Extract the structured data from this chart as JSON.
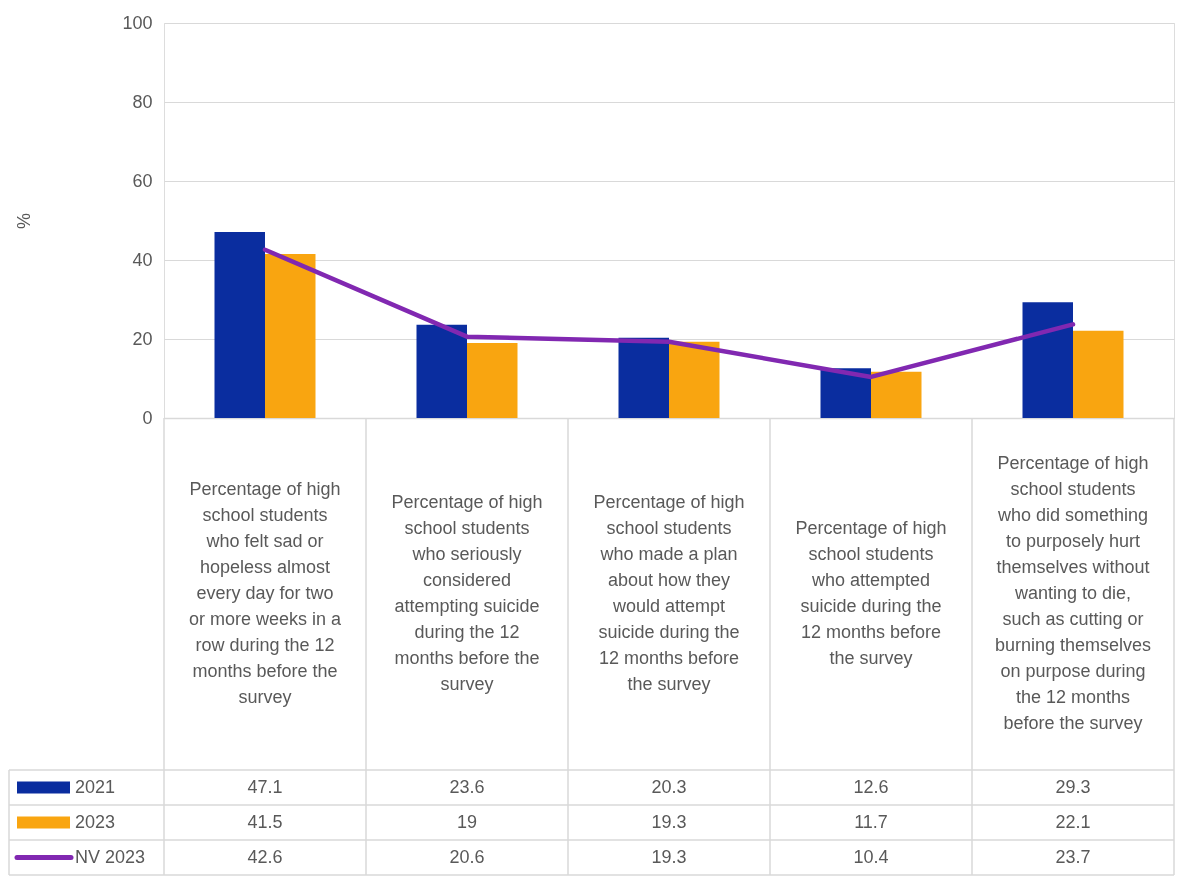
{
  "chart_data": {
    "type": "bar",
    "ylabel": "%",
    "categories": [
      "Percentage of high school students who felt sad or hopeless almost every day for two or more weeks in a row during the 12 months before the survey",
      "Percentage of high school students who seriously considered attempting suicide during the 12 months before the survey",
      "Percentage of high school students who made a plan about how they would attempt suicide during the 12 months before the survey",
      "Percentage of high school students who attempted suicide during the 12 months before the survey",
      "Percentage of high school students who did something to purposely hurt themselves without wanting to die, such as cutting or burning themselves on purpose during the 12 months before the survey"
    ],
    "series": [
      {
        "name": "2021",
        "color": "#0a2d9f",
        "values": [
          47.1,
          23.6,
          20.3,
          12.6,
          29.3
        ]
      },
      {
        "name": "2023",
        "color": "#f9a510",
        "values": [
          41.5,
          19,
          19.3,
          11.7,
          22.1
        ]
      },
      {
        "name": "NV 2023",
        "type": "line",
        "color": "#8128b1",
        "values": [
          42.6,
          20.6,
          19.3,
          10.4,
          23.7
        ]
      }
    ],
    "ylim": [
      0,
      100
    ],
    "yticks": [
      0,
      20,
      40,
      60,
      80,
      100
    ],
    "grid": "y",
    "legend": "bottom",
    "data_labels": true,
    "line_style": "solid"
  }
}
